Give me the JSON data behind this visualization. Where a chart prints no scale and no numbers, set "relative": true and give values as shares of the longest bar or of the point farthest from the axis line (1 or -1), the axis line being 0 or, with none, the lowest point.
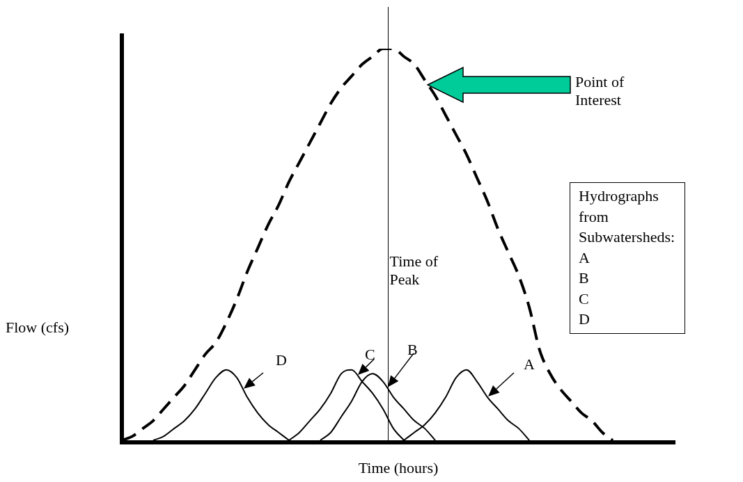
{
  "chart_data": {
    "type": "line",
    "relative": true,
    "xlabel": "Time (hours)",
    "ylabel": "Flow (cfs)",
    "categories": [
      null,
      null,
      null,
      null,
      null,
      null,
      null,
      null,
      null,
      null,
      null,
      null,
      null,
      null,
      null,
      null,
      null,
      null,
      null,
      null,
      null,
      null,
      null,
      null,
      null,
      null,
      null,
      null,
      null,
      null,
      null,
      null,
      null,
      null,
      null,
      null,
      null,
      null,
      null,
      null,
      null,
      null,
      null,
      null,
      null,
      null,
      null,
      null,
      null,
      null,
      null,
      null,
      null,
      null
    ],
    "series": [
      {
        "color": "#000000",
        "line_style": "dashed",
        "values": [
          0,
          0.01,
          0.03,
          0.05,
          0.08,
          0.11,
          0.14,
          0.18,
          0.22,
          0.25,
          0.3,
          0.36,
          0.43,
          0.49,
          0.55,
          0.6,
          0.66,
          0.71,
          0.76,
          0.81,
          0.86,
          0.9,
          0.93,
          0.96,
          0.98,
          1,
          1,
          0.98,
          0.96,
          0.92,
          0.88,
          0.83,
          0.78,
          0.73,
          0.67,
          0.61,
          0.54,
          0.48,
          0.42,
          0.34,
          0.23,
          0.17,
          0.13,
          0.1,
          0.07,
          0.05,
          0.02,
          0,
          null,
          null,
          null,
          null,
          null,
          null
        ]
      },
      {
        "name": "A",
        "color": "#000000",
        "values": [
          null,
          null,
          null,
          null,
          null,
          null,
          null,
          null,
          null,
          null,
          null,
          null,
          null,
          null,
          null,
          null,
          null,
          null,
          null,
          null,
          null,
          null,
          null,
          null,
          null,
          null,
          null,
          0,
          0.02,
          0.04,
          0.07,
          0.11,
          0.16,
          0.18,
          0.15,
          0.11,
          0.08,
          0.05,
          0.03,
          0,
          null,
          null,
          null,
          null,
          null,
          null,
          null,
          null,
          null,
          null,
          null,
          null,
          null,
          null
        ]
      },
      {
        "name": "B",
        "color": "#000000",
        "values": [
          null,
          null,
          null,
          null,
          null,
          null,
          null,
          null,
          null,
          null,
          null,
          null,
          null,
          null,
          null,
          null,
          null,
          null,
          null,
          0,
          0.02,
          0.06,
          0.1,
          0.15,
          0.17,
          0.15,
          0.11,
          0.08,
          0.05,
          0.03,
          0,
          null,
          null,
          null,
          null,
          null,
          null,
          null,
          null,
          null,
          null,
          null,
          null,
          null,
          null,
          null,
          null,
          null,
          null,
          null,
          null,
          null,
          null,
          null
        ]
      },
      {
        "name": "C",
        "color": "#000000",
        "values": [
          null,
          null,
          null,
          null,
          null,
          null,
          null,
          null,
          null,
          null,
          null,
          null,
          null,
          null,
          null,
          null,
          0,
          0.02,
          0.05,
          0.08,
          0.12,
          0.17,
          0.18,
          0.15,
          0.12,
          0.08,
          0.03,
          0,
          null,
          null,
          null,
          null,
          null,
          null,
          null,
          null,
          null,
          null,
          null,
          null,
          null,
          null,
          null,
          null,
          null,
          null,
          null,
          null,
          null,
          null,
          null,
          null,
          null,
          null
        ]
      },
      {
        "name": "D",
        "color": "#000000",
        "values": [
          null,
          null,
          null,
          0,
          0.01,
          0.03,
          0.05,
          0.08,
          0.12,
          0.16,
          0.18,
          0.16,
          0.11,
          0.07,
          0.04,
          0.02,
          0,
          null,
          null,
          null,
          null,
          null,
          null,
          null,
          null,
          null,
          null,
          null,
          null,
          null,
          null,
          null,
          null,
          null,
          null,
          null,
          null,
          null,
          null,
          null,
          null,
          null,
          null,
          null,
          null,
          null,
          null,
          null,
          null,
          null,
          null,
          null,
          null,
          null
        ]
      }
    ],
    "annotations": [
      "Point of Interest",
      "Hydrographs from Subwatersheds:\nA\nB\nC\nD",
      "Time of Peak"
    ],
    "legend": false,
    "grid": false,
    "marker": "none",
    "tick_labels": false
  }
}
